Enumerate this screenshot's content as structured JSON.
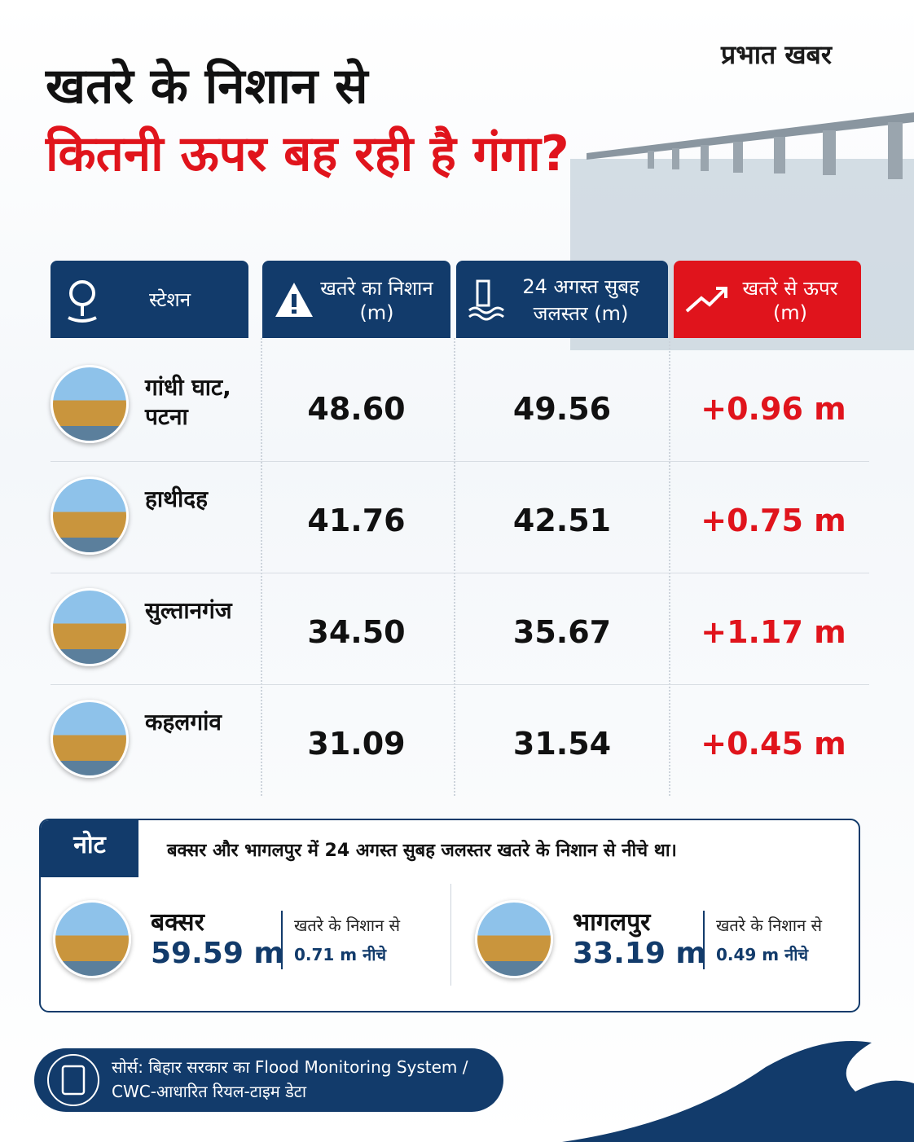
{
  "header": {
    "brand": "प्रभात खबर",
    "title_line1": "खतरे के निशान से",
    "title_line2": "कितनी ऊपर बह रही है गंगा?"
  },
  "table": {
    "columns": [
      "स्टेशन",
      "खतरे का निशान (m)",
      "24 अगस्त सुबह जलस्तर (m)",
      "खतरे से ऊपर (m)"
    ],
    "rows": [
      [
        "गांधी घाट, पटना",
        "48.60",
        "49.56",
        "+0.96 m"
      ],
      [
        "हाथीदह",
        "41.76",
        "42.51",
        "+0.75 m"
      ],
      [
        "सुल्तानगंज",
        "34.50",
        "35.67",
        "+1.17 m"
      ],
      [
        "कहलगांव",
        "31.09",
        "31.54",
        "+0.45 m"
      ]
    ]
  },
  "note": {
    "label": "नोट",
    "text": "बक्सर और भागलपुर में 24 अगस्त सुबह जलस्तर खतरे के निशान से नीचे था।",
    "stations": [
      {
        "name": "बक्सर",
        "level": "59.59 m",
        "caption": "खतरे के निशान से",
        "diff": "0.71 m नीचे"
      },
      {
        "name": "भागलपुर",
        "level": "33.19 m",
        "caption": "खतरे के निशान से",
        "diff": "0.49 m नीचे"
      }
    ]
  },
  "source": "सोर्स: बिहार सरकार का Flood Monitoring System / CWC-आधारित रियल-टाइम डेटा"
}
